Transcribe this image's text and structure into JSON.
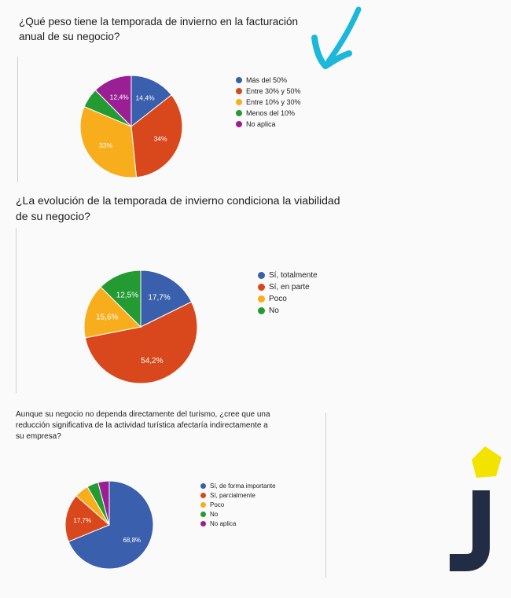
{
  "questions": {
    "q1": "¿Qué peso tiene la temporada de invierno en la facturación anual de su negocio?",
    "q2": "¿La evolución de la temporada de invierno condiciona la viabilidad de su negocio?",
    "q3": "Aunque su negocio no dependa directamente del turismo, ¿cree que una reducción significativa de la actividad turística afectaría indirectamente a su empresa?"
  },
  "chart_data": [
    {
      "type": "pie",
      "slices": [
        {
          "label": "Más del 50%",
          "value": 14.4,
          "display": "14,4%",
          "color": "#3a60ad"
        },
        {
          "label": "Entre 30% y 50%",
          "value": 34,
          "display": "34%",
          "color": "#d9481c"
        },
        {
          "label": "Entre 10% y 30%",
          "value": 33,
          "display": "33%",
          "color": "#f8ae1c"
        },
        {
          "label": "Menos del 10%",
          "value": 6.2,
          "display": "",
          "color": "#239b32"
        },
        {
          "label": "No aplica",
          "value": 12.4,
          "display": "12,4%",
          "color": "#9b1f94"
        }
      ],
      "legend_position": "right"
    },
    {
      "type": "pie",
      "slices": [
        {
          "label": "Sí, totalmente",
          "value": 17.7,
          "display": "17,7%",
          "color": "#3a60ad"
        },
        {
          "label": "Sí, en parte",
          "value": 54.2,
          "display": "54,2%",
          "color": "#d9481c"
        },
        {
          "label": "Poco",
          "value": 15.6,
          "display": "15,6%",
          "color": "#f8ae1c"
        },
        {
          "label": "No",
          "value": 12.5,
          "display": "12,5%",
          "color": "#239b32"
        }
      ],
      "legend_position": "right"
    },
    {
      "type": "pie",
      "slices": [
        {
          "label": "Sí, de forma importante",
          "value": 68.8,
          "display": "68,8%",
          "color": "#3a60ad"
        },
        {
          "label": "Sí, parcialmente",
          "value": 17.7,
          "display": "17,7%",
          "color": "#d9481c"
        },
        {
          "label": "Poco",
          "value": 5.2,
          "display": "",
          "color": "#f8ae1c"
        },
        {
          "label": "No",
          "value": 4.2,
          "display": "",
          "color": "#239b32"
        },
        {
          "label": "No aplica",
          "value": 4.1,
          "display": "",
          "color": "#9b1f94"
        }
      ],
      "legend_position": "right"
    }
  ],
  "decorations": {
    "arrow_color": "#1bb8dc",
    "logo_letter_color": "#232c45",
    "logo_pentagon_color": "#f2e300"
  }
}
